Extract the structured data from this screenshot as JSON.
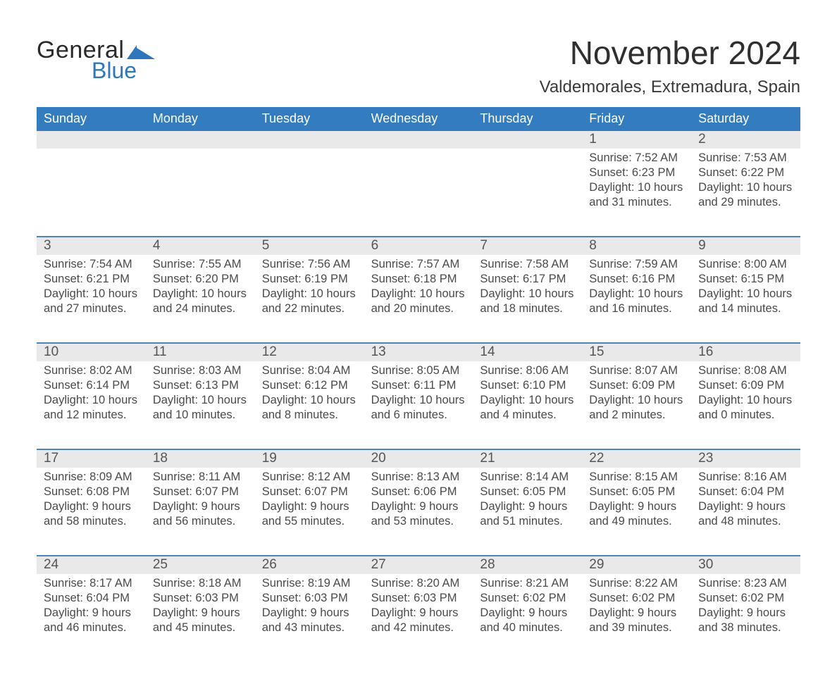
{
  "brand": {
    "word1": "General",
    "word2": "Blue",
    "color_primary": "#2c77bf"
  },
  "title": "November 2024",
  "location": "Valdemorales, Extremadura, Spain",
  "weekdays": [
    "Sunday",
    "Monday",
    "Tuesday",
    "Wednesday",
    "Thursday",
    "Friday",
    "Saturday"
  ],
  "labels": {
    "sunrise": "Sunrise:",
    "sunset": "Sunset:",
    "daylight": "Daylight:"
  },
  "colors": {
    "header_bg": "#327cbf",
    "rule": "#4a84c3",
    "daynum_bg": "#e9e9e9",
    "text": "#333333",
    "page_bg": "#ffffff"
  },
  "typography": {
    "title_fontsize_pt": 34,
    "location_fontsize_pt": 18,
    "weekday_fontsize_pt": 14,
    "daynum_fontsize_pt": 14,
    "body_fontsize_pt": 12
  },
  "layout": {
    "columns": 7,
    "rows": 5,
    "start_weekday_index": 5
  },
  "weeks": [
    [
      null,
      null,
      null,
      null,
      null,
      {
        "day": 1,
        "sunrise": "7:52 AM",
        "sunset": "6:23 PM",
        "daylight": "10 hours and 31 minutes."
      },
      {
        "day": 2,
        "sunrise": "7:53 AM",
        "sunset": "6:22 PM",
        "daylight": "10 hours and 29 minutes."
      }
    ],
    [
      {
        "day": 3,
        "sunrise": "7:54 AM",
        "sunset": "6:21 PM",
        "daylight": "10 hours and 27 minutes."
      },
      {
        "day": 4,
        "sunrise": "7:55 AM",
        "sunset": "6:20 PM",
        "daylight": "10 hours and 24 minutes."
      },
      {
        "day": 5,
        "sunrise": "7:56 AM",
        "sunset": "6:19 PM",
        "daylight": "10 hours and 22 minutes."
      },
      {
        "day": 6,
        "sunrise": "7:57 AM",
        "sunset": "6:18 PM",
        "daylight": "10 hours and 20 minutes."
      },
      {
        "day": 7,
        "sunrise": "7:58 AM",
        "sunset": "6:17 PM",
        "daylight": "10 hours and 18 minutes."
      },
      {
        "day": 8,
        "sunrise": "7:59 AM",
        "sunset": "6:16 PM",
        "daylight": "10 hours and 16 minutes."
      },
      {
        "day": 9,
        "sunrise": "8:00 AM",
        "sunset": "6:15 PM",
        "daylight": "10 hours and 14 minutes."
      }
    ],
    [
      {
        "day": 10,
        "sunrise": "8:02 AM",
        "sunset": "6:14 PM",
        "daylight": "10 hours and 12 minutes."
      },
      {
        "day": 11,
        "sunrise": "8:03 AM",
        "sunset": "6:13 PM",
        "daylight": "10 hours and 10 minutes."
      },
      {
        "day": 12,
        "sunrise": "8:04 AM",
        "sunset": "6:12 PM",
        "daylight": "10 hours and 8 minutes."
      },
      {
        "day": 13,
        "sunrise": "8:05 AM",
        "sunset": "6:11 PM",
        "daylight": "10 hours and 6 minutes."
      },
      {
        "day": 14,
        "sunrise": "8:06 AM",
        "sunset": "6:10 PM",
        "daylight": "10 hours and 4 minutes."
      },
      {
        "day": 15,
        "sunrise": "8:07 AM",
        "sunset": "6:09 PM",
        "daylight": "10 hours and 2 minutes."
      },
      {
        "day": 16,
        "sunrise": "8:08 AM",
        "sunset": "6:09 PM",
        "daylight": "10 hours and 0 minutes."
      }
    ],
    [
      {
        "day": 17,
        "sunrise": "8:09 AM",
        "sunset": "6:08 PM",
        "daylight": "9 hours and 58 minutes."
      },
      {
        "day": 18,
        "sunrise": "8:11 AM",
        "sunset": "6:07 PM",
        "daylight": "9 hours and 56 minutes."
      },
      {
        "day": 19,
        "sunrise": "8:12 AM",
        "sunset": "6:07 PM",
        "daylight": "9 hours and 55 minutes."
      },
      {
        "day": 20,
        "sunrise": "8:13 AM",
        "sunset": "6:06 PM",
        "daylight": "9 hours and 53 minutes."
      },
      {
        "day": 21,
        "sunrise": "8:14 AM",
        "sunset": "6:05 PM",
        "daylight": "9 hours and 51 minutes."
      },
      {
        "day": 22,
        "sunrise": "8:15 AM",
        "sunset": "6:05 PM",
        "daylight": "9 hours and 49 minutes."
      },
      {
        "day": 23,
        "sunrise": "8:16 AM",
        "sunset": "6:04 PM",
        "daylight": "9 hours and 48 minutes."
      }
    ],
    [
      {
        "day": 24,
        "sunrise": "8:17 AM",
        "sunset": "6:04 PM",
        "daylight": "9 hours and 46 minutes."
      },
      {
        "day": 25,
        "sunrise": "8:18 AM",
        "sunset": "6:03 PM",
        "daylight": "9 hours and 45 minutes."
      },
      {
        "day": 26,
        "sunrise": "8:19 AM",
        "sunset": "6:03 PM",
        "daylight": "9 hours and 43 minutes."
      },
      {
        "day": 27,
        "sunrise": "8:20 AM",
        "sunset": "6:03 PM",
        "daylight": "9 hours and 42 minutes."
      },
      {
        "day": 28,
        "sunrise": "8:21 AM",
        "sunset": "6:02 PM",
        "daylight": "9 hours and 40 minutes."
      },
      {
        "day": 29,
        "sunrise": "8:22 AM",
        "sunset": "6:02 PM",
        "daylight": "9 hours and 39 minutes."
      },
      {
        "day": 30,
        "sunrise": "8:23 AM",
        "sunset": "6:02 PM",
        "daylight": "9 hours and 38 minutes."
      }
    ]
  ]
}
